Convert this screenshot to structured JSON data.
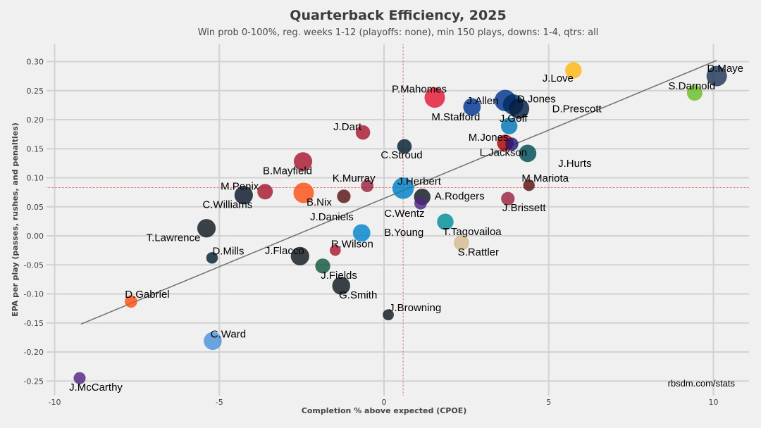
{
  "chart_data": {
    "type": "scatter",
    "title": "Quarterback Efficiency, 2025",
    "subtitle": "Win prob 0-100%, reg. weeks 1-12 (playoffs: none), min 150 plays, downs: 1-4, qtrs: all",
    "xlabel": "Completion % above expected (CPOE)",
    "ylabel": "EPA per play (passes, rushes, and penalties)",
    "xlim": [
      -10.2,
      11.1
    ],
    "ylim": [
      -0.26,
      0.33
    ],
    "xticks": [
      -10,
      -5,
      0,
      5,
      10
    ],
    "xtick_labels": [
      "-10",
      "-5",
      "0",
      "5",
      "10"
    ],
    "yticks": [
      0.3,
      0.25,
      0.2,
      0.15,
      0.1,
      0.05,
      0.0,
      -0.05,
      -0.1,
      -0.15,
      -0.2,
      -0.25
    ],
    "ytick_labels": [
      "0.30",
      "0.25",
      "0.20",
      "0.15",
      "0.10",
      "0.05",
      "0.00",
      "-0.05",
      "-0.10",
      "-0.15",
      "-0.20",
      "-0.25"
    ],
    "grid": true,
    "mean_cpoe": 0.58,
    "mean_epa": 0.083,
    "trendline": {
      "x": [
        -9.2,
        10.1
      ],
      "y": [
        -0.152,
        0.302
      ]
    },
    "credit": "rbsdm.com/stats",
    "points": [
      {
        "name": "D.Maye",
        "x": 10.1,
        "y": 0.275,
        "size": 3,
        "color": "#1d3557"
      },
      {
        "name": "S.Darnold",
        "x": 9.43,
        "y": 0.246,
        "size": 2,
        "color": "#69be28"
      },
      {
        "name": "J.Love",
        "x": 5.75,
        "y": 0.285,
        "size": 2.2,
        "color": "#ffb612"
      },
      {
        "name": "P.Mahomes",
        "x": 1.54,
        "y": 0.238,
        "size": 3,
        "color": "#e31837"
      },
      {
        "name": "J.Allen",
        "x": 3.68,
        "y": 0.233,
        "size": 3.2,
        "color": "#00338d"
      },
      {
        "name": "D.Jones",
        "x": 3.92,
        "y": 0.226,
        "size": 3,
        "color": "#002c5f"
      },
      {
        "name": "D.Prescott",
        "x": 4.1,
        "y": 0.219,
        "size": 3,
        "color": "#041e42"
      },
      {
        "name": "M.Stafford",
        "x": 2.67,
        "y": 0.222,
        "size": 2.4,
        "color": "#003594"
      },
      {
        "name": "J.Goff",
        "x": 3.8,
        "y": 0.189,
        "size": 2.2,
        "color": "#0076b6"
      },
      {
        "name": "M.Jones",
        "x": 3.68,
        "y": 0.16,
        "size": 2.2,
        "color": "#aa0000"
      },
      {
        "name": "L.Jackson",
        "x": 3.88,
        "y": 0.158,
        "size": 1.5,
        "color": "#241773"
      },
      {
        "name": "J.Hurts",
        "x": 4.36,
        "y": 0.142,
        "size": 2.4,
        "color": "#004c54"
      },
      {
        "name": "M.Mariota",
        "x": 4.4,
        "y": 0.087,
        "size": 1.2,
        "color": "#5a1414"
      },
      {
        "name": "J.Brissett",
        "x": 3.76,
        "y": 0.064,
        "size": 1.6,
        "color": "#97233f"
      },
      {
        "name": "C.Stroud",
        "x": 0.62,
        "y": 0.154,
        "size": 1.8,
        "color": "#03202f"
      },
      {
        "name": "J.Dart",
        "x": -0.64,
        "y": 0.178,
        "size": 1.8,
        "color": "#a71930"
      },
      {
        "name": "B.Mayfield",
        "x": -2.46,
        "y": 0.128,
        "size": 2.6,
        "color": "#a71930"
      },
      {
        "name": "K.Murray",
        "x": -0.51,
        "y": 0.086,
        "size": 1.4,
        "color": "#97233f"
      },
      {
        "name": "J.Herbert",
        "x": 0.58,
        "y": 0.082,
        "size": 3.2,
        "color": "#0080c6"
      },
      {
        "name": "A.Rodgers",
        "x": 1.16,
        "y": 0.067,
        "size": 2.2,
        "color": "#101820"
      },
      {
        "name": "C.Wentz",
        "x": 1.11,
        "y": 0.056,
        "size": 1.4,
        "color": "#4f2683"
      },
      {
        "name": "B.Nix",
        "x": -2.44,
        "y": 0.074,
        "size": 3,
        "color": "#fb4f14"
      },
      {
        "name": "M.Penix",
        "x": -3.61,
        "y": 0.076,
        "size": 2,
        "color": "#a71930"
      },
      {
        "name": "C.Williams",
        "x": -4.26,
        "y": 0.07,
        "size": 2.6,
        "color": "#0b162a"
      },
      {
        "name": "J.Daniels",
        "x": -1.22,
        "y": 0.068,
        "size": 1.6,
        "color": "#5a1414"
      },
      {
        "name": "T.Lawrence",
        "x": -5.39,
        "y": 0.013,
        "size": 2.6,
        "color": "#101820"
      },
      {
        "name": "B.Young",
        "x": -0.68,
        "y": 0.005,
        "size": 2.4,
        "color": "#0085ca"
      },
      {
        "name": "T.Tagovailoa",
        "x": 1.86,
        "y": 0.024,
        "size": 2.2,
        "color": "#008e97"
      },
      {
        "name": "S.Rattler",
        "x": 2.35,
        "y": -0.012,
        "size": 2,
        "color": "#d3bc8d"
      },
      {
        "name": "R.Wilson",
        "x": -1.48,
        "y": -0.025,
        "size": 1.1,
        "color": "#a71930"
      },
      {
        "name": "D.Mills",
        "x": -5.22,
        "y": -0.038,
        "size": 1.2,
        "color": "#03202f"
      },
      {
        "name": "J.Flacco",
        "x": -2.55,
        "y": -0.035,
        "size": 2.6,
        "color": "#101820"
      },
      {
        "name": "J.Fields",
        "x": -1.86,
        "y": -0.052,
        "size": 1.9,
        "color": "#125740"
      },
      {
        "name": "G.Smith",
        "x": -1.3,
        "y": -0.086,
        "size": 2.5,
        "color": "#101820"
      },
      {
        "name": "J.Browning",
        "x": 0.13,
        "y": -0.136,
        "size": 1.1,
        "color": "#101820"
      },
      {
        "name": "D.Gabriel",
        "x": -7.68,
        "y": -0.113,
        "size": 1.4,
        "color": "#fb4f14"
      },
      {
        "name": "C.Ward",
        "x": -5.2,
        "y": -0.181,
        "size": 2.5,
        "color": "#4b92db"
      },
      {
        "name": "J.McCarthy",
        "x": -9.24,
        "y": -0.245,
        "size": 1.3,
        "color": "#4f2683"
      }
    ]
  }
}
